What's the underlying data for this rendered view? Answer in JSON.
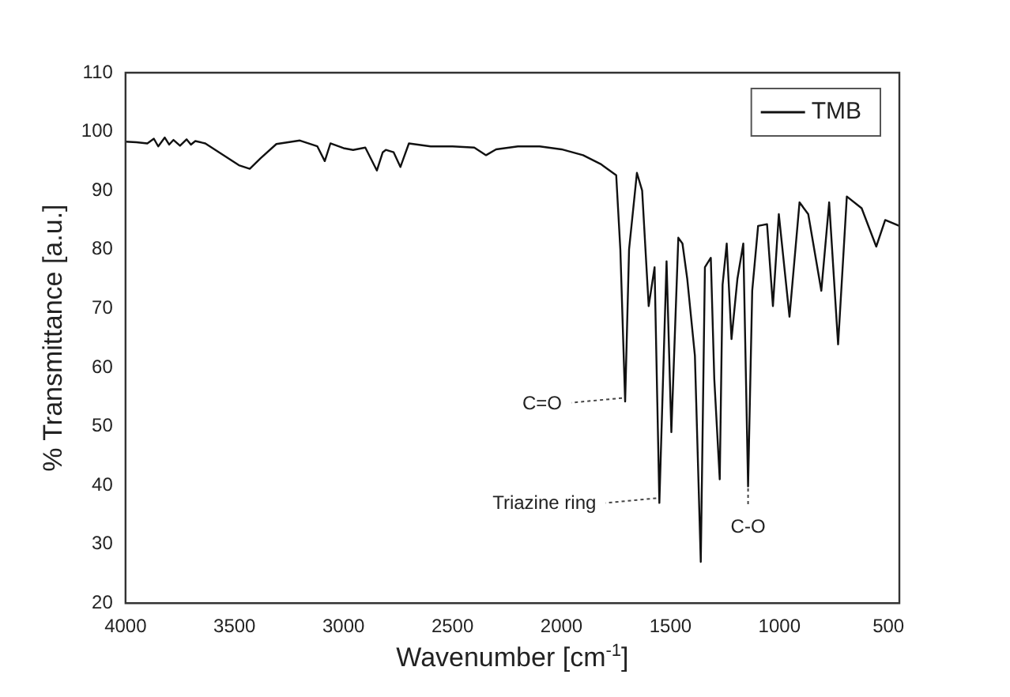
{
  "chart_data": {
    "type": "line",
    "xlabel": "Wavenumber [cm$^{-1}$]",
    "ylabel": "% Transmittance [a.u.]",
    "xlim": [
      4000,
      450
    ],
    "xticks": [
      4000,
      3500,
      3000,
      2500,
      2000,
      1500,
      1000,
      500
    ],
    "ylim": [
      20,
      110
    ],
    "yticks": [
      20,
      30,
      40,
      50,
      60,
      70,
      80,
      90,
      100,
      110
    ],
    "grid": false,
    "legend": "top right",
    "marker": "none",
    "line_style": "solid",
    "annotations": [
      {
        "text": "C=O",
        "x": 1708,
        "y": 54
      },
      {
        "text": "Triazine ring",
        "x": 1551,
        "y": 37
      },
      {
        "text": "C-O",
        "x": 1144,
        "y": 40
      }
    ],
    "series": [
      {
        "name": "TMB",
        "color": "#111111",
        "x": [
          4000,
          3950,
          3900,
          3870,
          3850,
          3820,
          3800,
          3780,
          3750,
          3720,
          3700,
          3680,
          3634,
          3550,
          3480,
          3430,
          3380,
          3308,
          3200,
          3120,
          3086,
          3060,
          3000,
          2956,
          2900,
          2847,
          2820,
          2806,
          2770,
          2739,
          2700,
          2600,
          2500,
          2400,
          2346,
          2300,
          2200,
          2100,
          2000,
          1901,
          1820,
          1749,
          1730,
          1708,
          1690,
          1654,
          1630,
          1600,
          1573,
          1551,
          1518,
          1496,
          1464,
          1445,
          1423,
          1388,
          1361,
          1342,
          1315,
          1299,
          1274,
          1261,
          1242,
          1220,
          1193,
          1166,
          1144,
          1125,
          1098,
          1057,
          1030,
          1003,
          954,
          908,
          868,
          808,
          772,
          731,
          691,
          623,
          556,
          515,
          450
        ],
        "values": [
          98.3,
          98.2,
          98,
          98.8,
          97.5,
          99,
          97.8,
          98.6,
          97.6,
          98.7,
          97.8,
          98.4,
          98,
          96,
          94.3,
          93.7,
          95.5,
          97.9,
          98.5,
          97.5,
          95,
          98,
          97.2,
          96.9,
          97.3,
          93.4,
          96.5,
          96.9,
          96.5,
          94,
          98,
          97.5,
          97.5,
          97.3,
          96,
          97,
          97.5,
          97.5,
          97,
          96,
          94.5,
          92.6,
          80,
          54.2,
          80,
          93,
          90,
          70.4,
          77,
          37,
          78,
          49,
          82,
          81,
          75,
          62,
          27,
          77,
          78.6,
          58,
          41,
          74,
          81,
          64.8,
          75,
          81,
          39.8,
          73,
          84,
          84.3,
          70.4,
          86,
          68.6,
          88,
          86,
          73,
          88,
          63.9,
          89,
          87,
          80.5,
          85,
          84
        ]
      }
    ]
  }
}
